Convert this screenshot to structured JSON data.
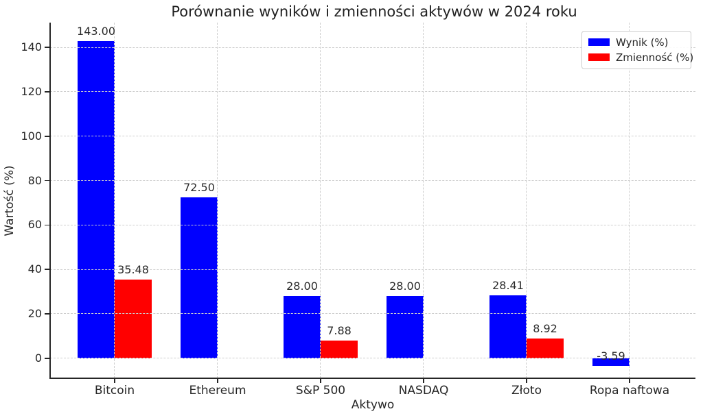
{
  "figure": {
    "background": "#ffffff"
  },
  "chart_data": {
    "type": "bar",
    "title": "Porównanie wyników i zmienności aktywów w 2024 roku",
    "xlabel": "Aktywo",
    "ylabel": "Wartość (%)",
    "categories": [
      "Bitcoin",
      "Ethereum",
      "S&P 500",
      "NASDAQ",
      "Złoto",
      "Ropa naftowa"
    ],
    "series": [
      {
        "name": "Wynik (%)",
        "color": "#0000ff",
        "values": [
          143.0,
          72.5,
          28.0,
          28.0,
          28.41,
          -3.59
        ],
        "labels": [
          "143.00",
          "72.50",
          "28.00",
          "28.00",
          "28.41",
          "-3.59"
        ]
      },
      {
        "name": "Zmienność (%)",
        "color": "#ff0000",
        "values": [
          35.48,
          null,
          7.88,
          null,
          8.92,
          null
        ],
        "labels": [
          "35.48",
          "",
          "7.88",
          "",
          "8.92",
          ""
        ]
      }
    ],
    "yticks": [
      0,
      20,
      40,
      60,
      80,
      100,
      120,
      140
    ],
    "ylim": [
      -9,
      151.2
    ],
    "grid": true,
    "grid_color": "#cdcdcd",
    "axis_color": "#262626",
    "text_color": "#262626",
    "legend_position": "upper right"
  }
}
